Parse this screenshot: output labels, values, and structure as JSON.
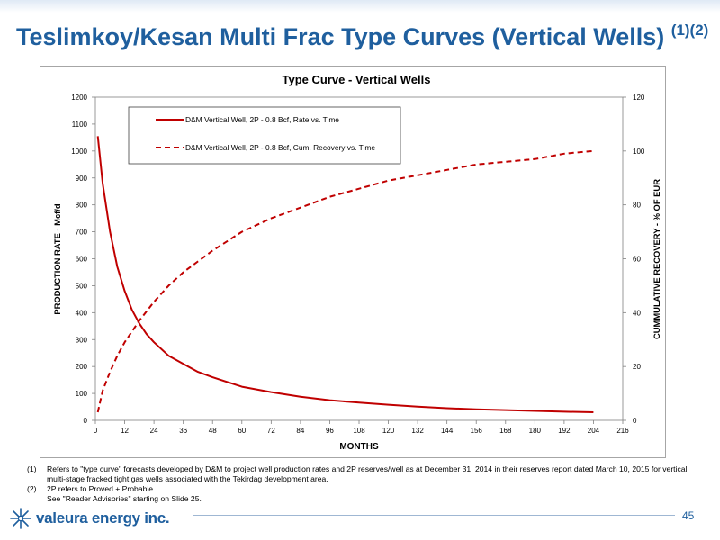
{
  "slide": {
    "title": "Teslimkoy/Kesan Multi Frac Type Curves (Vertical Wells)",
    "title_superscript": "(1)(2)",
    "footnotes": [
      {
        "num": "(1)",
        "text": "Refers to \"type curve\" forecasts developed by D&M to project well production rates and 2P reserves/well as at December 31, 2014 in their reserves report dated March 10, 2015 for vertical multi-stage fracked tight gas wells associated with the Tekirdag development area."
      },
      {
        "num": "(2)",
        "text": "2P refers to Proved + Probable."
      }
    ],
    "footnote_extra": "See \"Reader Advisories\" starting on Slide 25.",
    "logo_text": "valeura energy inc.",
    "page_number": "45",
    "colors": {
      "title": "#1f5f9e",
      "series": "#c00000"
    }
  },
  "chart_data": {
    "type": "line",
    "title": "Type Curve - Vertical Wells",
    "xlabel": "MONTHS",
    "ylabel_left": "PRODUCTION RATE - Mcf/d",
    "ylabel_right": "CUMMULATIVE RECOVERY - % OF EUR",
    "xlim": [
      0,
      216
    ],
    "ylim_left": [
      0,
      1200
    ],
    "ylim_right": [
      0,
      120
    ],
    "x_ticks": [
      0,
      12,
      24,
      36,
      48,
      60,
      72,
      84,
      96,
      108,
      120,
      132,
      144,
      156,
      168,
      180,
      192,
      204,
      216
    ],
    "y_ticks_left": [
      0,
      100,
      200,
      300,
      400,
      500,
      600,
      700,
      800,
      900,
      1000,
      1100,
      1200
    ],
    "y_ticks_right": [
      0,
      20,
      40,
      60,
      80,
      100,
      120
    ],
    "grid": false,
    "legend_position": "top-left",
    "series": [
      {
        "name": "D&M Vertical Well, 2P - 0.8 Bcf, Rate vs. Time",
        "axis": "left",
        "style": "solid",
        "color": "#c00000",
        "x": [
          1,
          3,
          6,
          9,
          12,
          15,
          18,
          21,
          24,
          30,
          36,
          42,
          48,
          60,
          72,
          84,
          96,
          108,
          120,
          132,
          144,
          156,
          168,
          180,
          192,
          204
        ],
        "y": [
          1055,
          880,
          700,
          570,
          480,
          410,
          360,
          320,
          290,
          240,
          210,
          180,
          160,
          125,
          105,
          88,
          75,
          66,
          58,
          51,
          45,
          41,
          38,
          35,
          32,
          30
        ]
      },
      {
        "name": "D&M Vertical Well, 2P - 0.8 Bcf, Cum. Recovery vs. Time",
        "axis": "right",
        "style": "dashed",
        "color": "#c00000",
        "x": [
          1,
          3,
          6,
          9,
          12,
          18,
          24,
          30,
          36,
          42,
          48,
          60,
          72,
          84,
          96,
          108,
          120,
          132,
          144,
          156,
          168,
          180,
          192,
          204
        ],
        "y": [
          3,
          11,
          18,
          24,
          29,
          37,
          44,
          50,
          55,
          59,
          63,
          70,
          75,
          79,
          83,
          86,
          89,
          91,
          93,
          95,
          96,
          97,
          99,
          100
        ]
      }
    ]
  }
}
